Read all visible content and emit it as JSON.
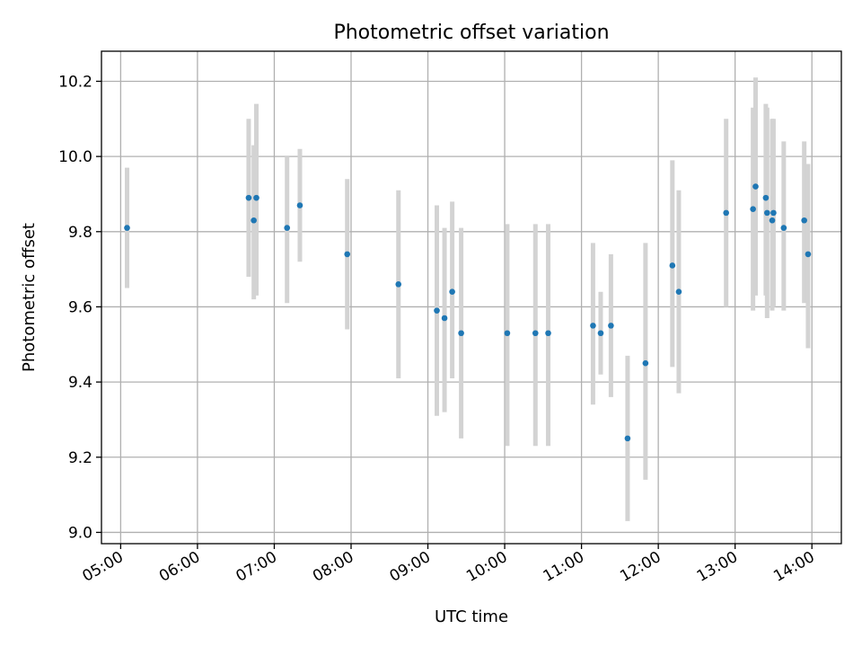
{
  "chart_data": {
    "type": "scatter",
    "title": "Photometric offset variation",
    "xlabel": "UTC time",
    "ylabel": "Photometric offset",
    "x_tick_labels": [
      "05:00",
      "06:00",
      "07:00",
      "08:00",
      "09:00",
      "10:00",
      "11:00",
      "12:00",
      "13:00",
      "14:00"
    ],
    "y_tick_labels": [
      "9.0",
      "9.2",
      "9.4",
      "9.6",
      "9.8",
      "10.0",
      "10.2"
    ],
    "xlim": [
      "04:45",
      "14:23"
    ],
    "ylim": [
      8.97,
      10.28
    ],
    "grid": true,
    "point_color": "#1f77b4",
    "errorbar_color": "#d3d3d3",
    "points": [
      {
        "time": "05:05",
        "y": 9.81,
        "ylow": 9.65,
        "yhigh": 9.97
      },
      {
        "time": "06:40",
        "y": 9.89,
        "ylow": 9.68,
        "yhigh": 10.1
      },
      {
        "time": "06:44",
        "y": 9.83,
        "ylow": 9.62,
        "yhigh": 10.03
      },
      {
        "time": "06:46",
        "y": 9.89,
        "ylow": 9.63,
        "yhigh": 10.14
      },
      {
        "time": "07:10",
        "y": 9.81,
        "ylow": 9.61,
        "yhigh": 10.0
      },
      {
        "time": "07:20",
        "y": 9.87,
        "ylow": 9.72,
        "yhigh": 10.02
      },
      {
        "time": "07:57",
        "y": 9.74,
        "ylow": 9.54,
        "yhigh": 9.94
      },
      {
        "time": "08:37",
        "y": 9.66,
        "ylow": 9.41,
        "yhigh": 9.91
      },
      {
        "time": "09:07",
        "y": 9.59,
        "ylow": 9.31,
        "yhigh": 9.87
      },
      {
        "time": "09:13",
        "y": 9.57,
        "ylow": 9.32,
        "yhigh": 9.81
      },
      {
        "time": "09:19",
        "y": 9.64,
        "ylow": 9.41,
        "yhigh": 9.88
      },
      {
        "time": "09:26",
        "y": 9.53,
        "ylow": 9.25,
        "yhigh": 9.81
      },
      {
        "time": "10:02",
        "y": 9.53,
        "ylow": 9.23,
        "yhigh": 9.82
      },
      {
        "time": "10:24",
        "y": 9.53,
        "ylow": 9.23,
        "yhigh": 9.82
      },
      {
        "time": "10:34",
        "y": 9.53,
        "ylow": 9.23,
        "yhigh": 9.82
      },
      {
        "time": "11:09",
        "y": 9.55,
        "ylow": 9.34,
        "yhigh": 9.77
      },
      {
        "time": "11:15",
        "y": 9.53,
        "ylow": 9.42,
        "yhigh": 9.64
      },
      {
        "time": "11:23",
        "y": 9.55,
        "ylow": 9.36,
        "yhigh": 9.74
      },
      {
        "time": "11:36",
        "y": 9.25,
        "ylow": 9.03,
        "yhigh": 9.47
      },
      {
        "time": "11:50",
        "y": 9.45,
        "ylow": 9.14,
        "yhigh": 9.77
      },
      {
        "time": "12:11",
        "y": 9.71,
        "ylow": 9.44,
        "yhigh": 9.99
      },
      {
        "time": "12:16",
        "y": 9.64,
        "ylow": 9.37,
        "yhigh": 9.91
      },
      {
        "time": "12:53",
        "y": 9.85,
        "ylow": 9.6,
        "yhigh": 10.1
      },
      {
        "time": "13:14",
        "y": 9.86,
        "ylow": 9.59,
        "yhigh": 10.13
      },
      {
        "time": "13:16",
        "y": 9.92,
        "ylow": 9.63,
        "yhigh": 10.21
      },
      {
        "time": "13:24",
        "y": 9.89,
        "ylow": 9.63,
        "yhigh": 10.14
      },
      {
        "time": "13:25",
        "y": 9.85,
        "ylow": 9.57,
        "yhigh": 10.13
      },
      {
        "time": "13:29",
        "y": 9.83,
        "ylow": 9.59,
        "yhigh": 10.1
      },
      {
        "time": "13:30",
        "y": 9.85,
        "ylow": 9.6,
        "yhigh": 10.1
      },
      {
        "time": "13:38",
        "y": 9.81,
        "ylow": 9.59,
        "yhigh": 10.04
      },
      {
        "time": "13:54",
        "y": 9.83,
        "ylow": 9.61,
        "yhigh": 10.04
      },
      {
        "time": "13:57",
        "y": 9.74,
        "ylow": 9.49,
        "yhigh": 9.98
      }
    ]
  }
}
